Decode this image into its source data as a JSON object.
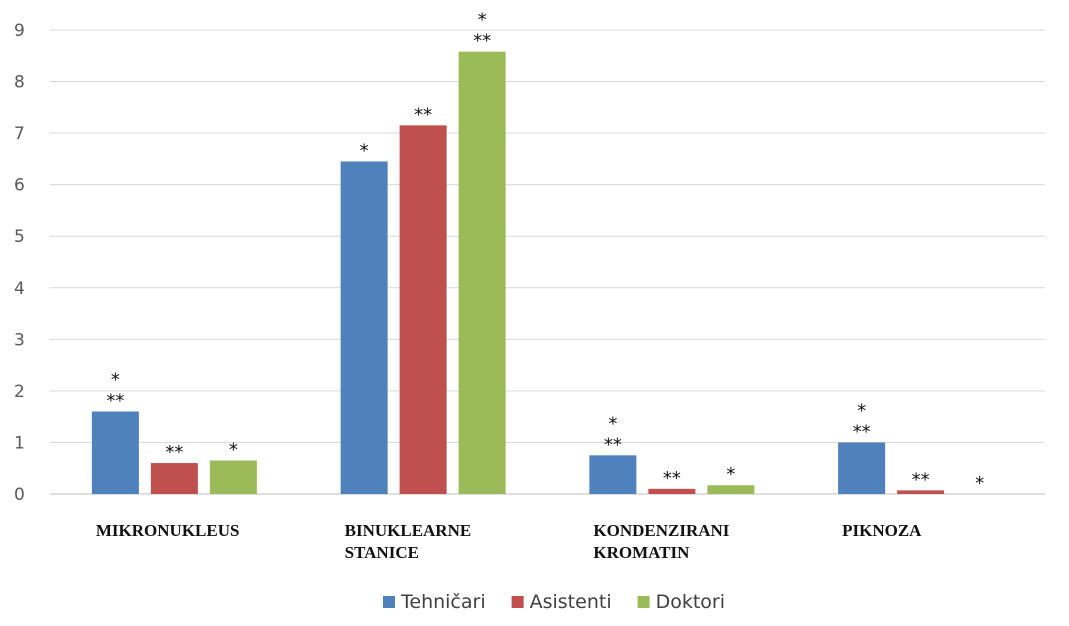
{
  "chart_data": {
    "type": "bar",
    "categories": [
      [
        "MIKRONUKLEUS"
      ],
      [
        "BINUKLEARNE",
        "STANICE"
      ],
      [
        "KONDENZIRANI",
        "KROMATIN"
      ],
      [
        "PIKNOZA"
      ]
    ],
    "series": [
      {
        "name": "Tehničari",
        "color": "#4f81bd",
        "values": [
          1.6,
          6.45,
          0.75,
          1.0
        ],
        "annotations": [
          [
            "*",
            "**"
          ],
          [
            "*"
          ],
          [
            "*",
            "**"
          ],
          [
            "*",
            "**"
          ]
        ]
      },
      {
        "name": "Asistenti",
        "color": "#c0504d",
        "values": [
          0.6,
          7.15,
          0.1,
          0.07
        ],
        "annotations": [
          [
            "**"
          ],
          [
            "**"
          ],
          [
            "**"
          ],
          [
            "**"
          ]
        ]
      },
      {
        "name": "Doktori",
        "color": "#9bbb59",
        "values": [
          0.65,
          8.58,
          0.17,
          0.0
        ],
        "annotations": [
          [
            "*"
          ],
          [
            "*",
            "**"
          ],
          [
            "*"
          ],
          [
            "*"
          ]
        ]
      }
    ],
    "yticks": [
      "0",
      "1",
      "2",
      "3",
      "4",
      "5",
      "6",
      "7",
      "8",
      "9"
    ],
    "ylim": [
      0,
      9
    ],
    "grid": true,
    "legend_position": "bottom",
    "title": "",
    "xlabel": "",
    "ylabel": ""
  }
}
